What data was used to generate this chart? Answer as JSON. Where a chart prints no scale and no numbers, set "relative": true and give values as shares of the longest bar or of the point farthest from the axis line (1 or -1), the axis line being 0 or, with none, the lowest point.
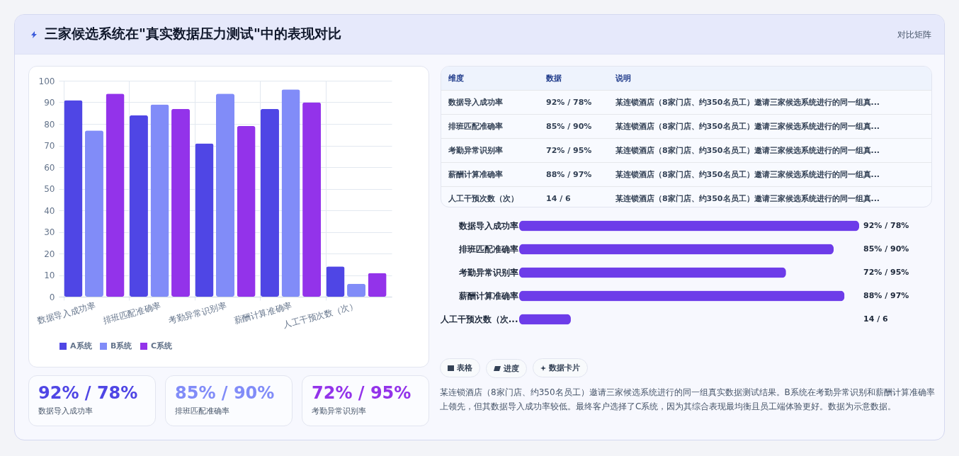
{
  "chart_data": [
    {
      "type": "bar",
      "title": "三家候选系统在\"真实数据压力测试\"中的表现对比",
      "annotations": [
        "对比矩阵"
      ],
      "categories": [
        "数据导入成功率",
        "排班匹配准确率",
        "考勤异常识别率",
        "薪酬计算准确率",
        "人工干预次数（次）"
      ],
      "series": [
        {
          "name": "A系统",
          "color": "#4f46e5",
          "values": [
            91,
            84,
            71,
            87,
            14
          ]
        },
        {
          "name": "B系统",
          "color": "#818cf8",
          "values": [
            77,
            89,
            94,
            96,
            6
          ]
        },
        {
          "name": "C系统",
          "color": "#9333ea",
          "values": [
            94,
            87,
            79,
            90,
            11
          ]
        }
      ],
      "ylim": [
        0,
        100
      ],
      "yticks": [
        0,
        10,
        20,
        30,
        40,
        50,
        60,
        70,
        80,
        90,
        100
      ],
      "grid": true,
      "legend": "bottom"
    },
    {
      "type": "other",
      "categories": [
        "维度",
        "数据",
        "说明"
      ],
      "annotations": [
        "数据导入成功率",
        "92% / 78%",
        "某连锁酒店（8家门店、约350名员工）邀请三家候选系统进行的同一组真...",
        "排班匹配准确率",
        "85% / 90%",
        "某连锁酒店（8家门店、约350名员工）邀请三家候选系统进行的同一组真...",
        "考勤异常识别率",
        "72% / 95%",
        "某连锁酒店（8家门店、约350名员工）邀请三家候选系统进行的同一组真...",
        "薪酬计算准确率",
        "88% / 97%",
        "某连锁酒店（8家门店、约350名员工）邀请三家候选系统进行的同一组真...",
        "人工干预次数（次）",
        "14 / 6",
        "某连锁酒店（8家门店、约350名员工）邀请三家候选系统进行的同一组真..."
      ]
    },
    {
      "type": "bar",
      "orientation": "horizontal",
      "relative": true,
      "categories": [
        "数据导入成功率",
        "排班匹配准确率",
        "考勤异常识别率",
        "薪酬计算准确率",
        "人工干预次数（次..."
      ],
      "series": [
        {
          "color": "#6d3ce9",
          "values": [
            1,
            0.925,
            0.785,
            0.957,
            0.152
          ]
        }
      ],
      "value_labels": [
        "92% / 78%",
        "85% / 90%",
        "72% / 95%",
        "88% / 97%",
        "14 / 6"
      ]
    },
    {
      "type": "other",
      "annotations": [
        "表格",
        "进度",
        "数据卡片",
        "某连锁酒店（8家门店、约350名员工）邀请三家候选系统进行的同一组真实数据测试结果。B系统在考勤异常识别和薪酬计算准确率上领先，但其数据导入成功率较低。最终客户选择了C系统，因为其综合表现最均衡且员工端体验更好。数据为示意数据。"
      ]
    },
    {
      "type": "other",
      "annotations": [
        "92% / 78%",
        "数据导入成功率",
        "85% / 90%",
        "排班匹配准确率",
        "72% / 95%",
        "考勤异常识别率"
      ],
      "colors": [
        "#4f46e5",
        "#818cf8",
        "#9333ea"
      ]
    }
  ]
}
